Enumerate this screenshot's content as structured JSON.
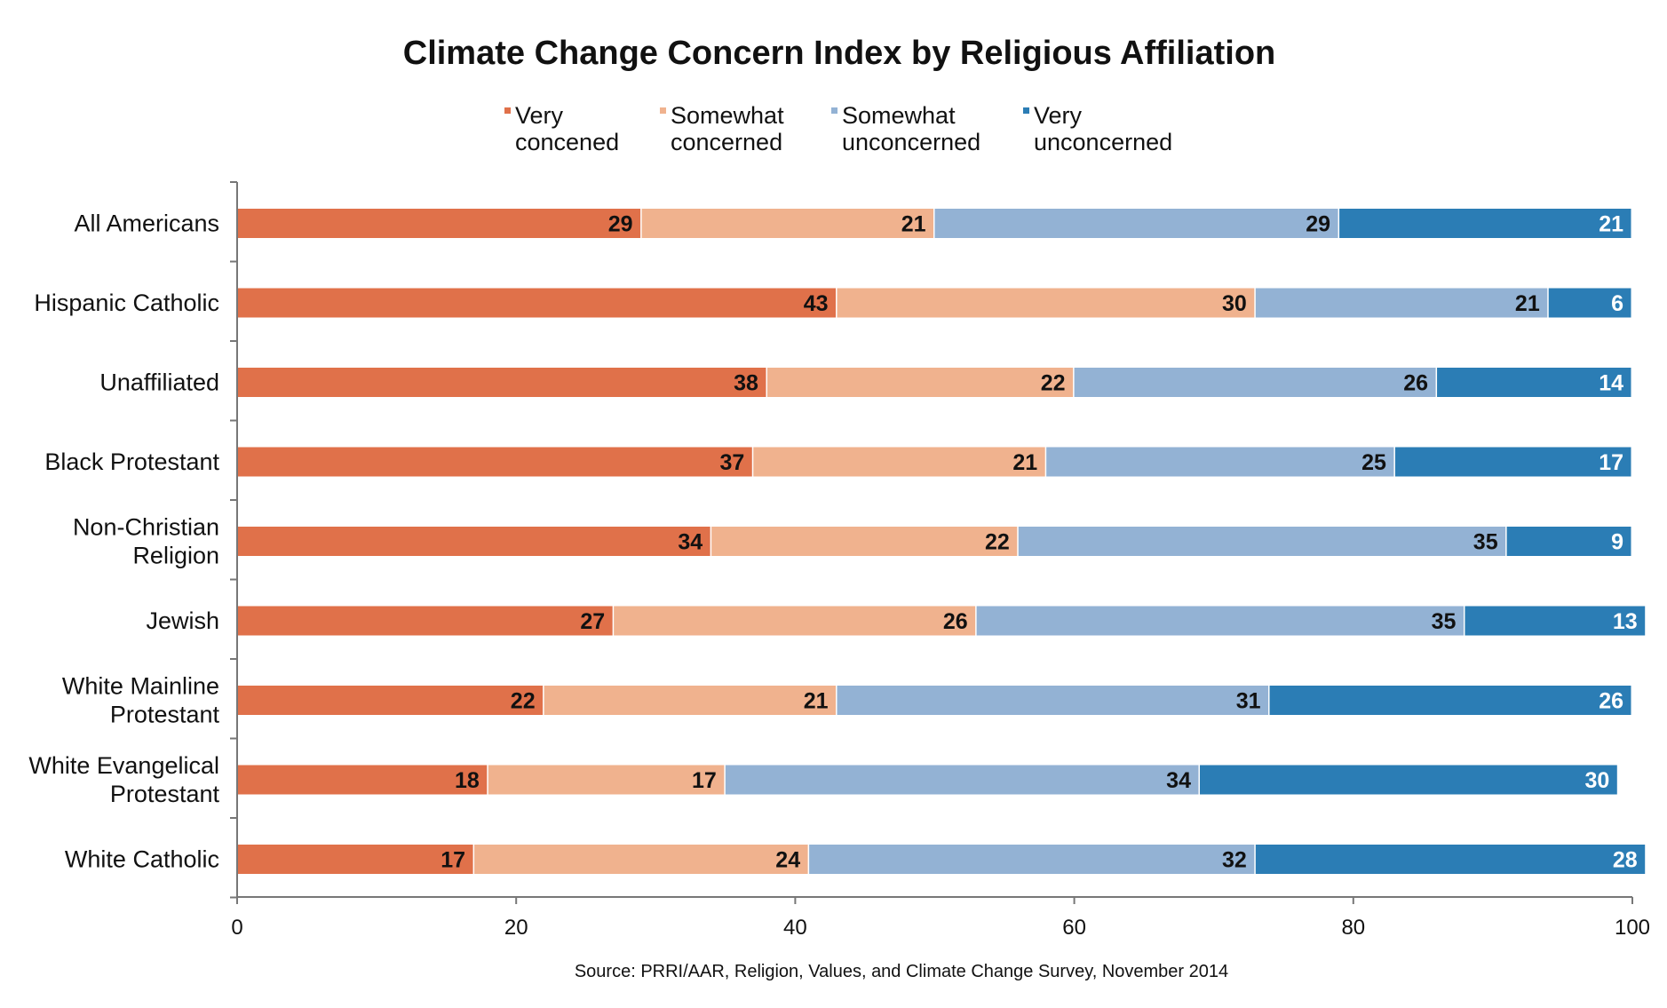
{
  "chart_data": {
    "type": "bar",
    "orientation": "horizontal",
    "stacked": true,
    "title": "Climate Change Concern Index by Religious Affiliation",
    "categories": [
      "All Americans",
      "Hispanic Catholic",
      "Unaffiliated",
      "Black Protestant",
      "Non-Christian Religion",
      "Jewish",
      "White Mainline Protestant",
      "White Evangelical Protestant",
      "White Catholic"
    ],
    "series": [
      {
        "name": "Very concened",
        "color": "#E0714A",
        "values": [
          29,
          43,
          38,
          37,
          34,
          27,
          22,
          18,
          17
        ]
      },
      {
        "name": "Somewhat concerned",
        "color": "#F0B28E",
        "values": [
          21,
          30,
          22,
          21,
          22,
          26,
          21,
          17,
          24
        ]
      },
      {
        "name": "Somewhat unconcerned",
        "color": "#93B2D4",
        "values": [
          29,
          21,
          26,
          25,
          35,
          35,
          31,
          34,
          32
        ]
      },
      {
        "name": "Very unconcerned",
        "color": "#2B7DB5",
        "values": [
          21,
          6,
          14,
          17,
          9,
          13,
          26,
          30,
          28
        ]
      }
    ],
    "label_colors": [
      "#111111",
      "#111111",
      "#111111",
      "#ffffff"
    ],
    "xlim": [
      0,
      100
    ],
    "x_ticks": [
      "0",
      "20",
      "40",
      "60",
      "80",
      "100"
    ],
    "grid": false,
    "legend_position": "top",
    "source": "Source: PRRI/AAR, Religion, Values, and Climate Change Survey, November 2014"
  }
}
